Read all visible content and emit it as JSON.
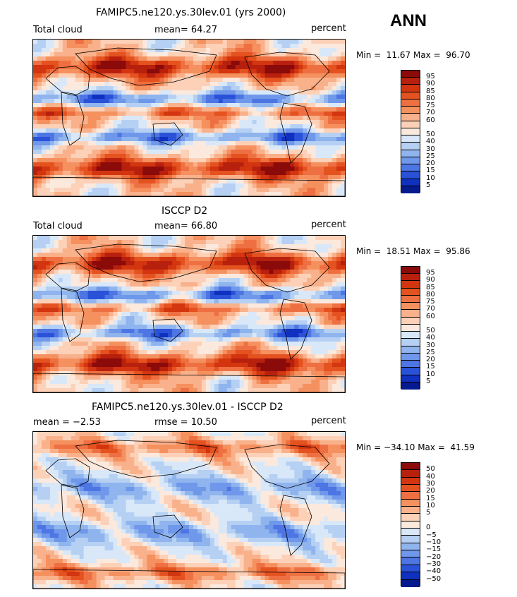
{
  "season": "ANN",
  "palette": {
    "levels_abs": [
      "#8b0a0a",
      "#b8200e",
      "#d2350f",
      "#e4521f",
      "#ee7042",
      "#f5905f",
      "#f9b18b",
      "#fcd1b8",
      "#fbe9dd",
      "#d9e8f8",
      "#b5d0f3",
      "#8fb4ee",
      "#6f97ea",
      "#4d75e3",
      "#2a52d9",
      "#1030c0",
      "#041a8e"
    ],
    "levels_diff": [
      "#8b0a0a",
      "#b8200e",
      "#d2350f",
      "#e4521f",
      "#ee7042",
      "#f5905f",
      "#f9b18b",
      "#fcd1b8",
      "#fbe9dd",
      "#d9e8f8",
      "#b5d0f3",
      "#8fb4ee",
      "#6f97ea",
      "#4d75e3",
      "#2a52d9",
      "#1030c0",
      "#041a8e"
    ]
  },
  "chart_data": [
    {
      "type": "heatmap",
      "title": "FAMIPC5.ne120.ys.30lev.01 (yrs 2000)",
      "left_label": "Total cloud",
      "mean_label": "mean=  64.27",
      "units": "percent",
      "min_max": "Min =  11.67 Max =  96.70",
      "min": 11.67,
      "max": 96.7,
      "mean": 64.27,
      "colorbar_labels": [
        "95",
        "90",
        "85",
        "80",
        "75",
        "70",
        "60",
        "50",
        "40",
        "30",
        "25",
        "20",
        "15",
        "10",
        "5"
      ]
    },
    {
      "type": "heatmap",
      "title": "ISCCP D2",
      "left_label": "Total cloud",
      "mean_label": "mean=  66.80",
      "units": "percent",
      "min_max": "Min =  18.51 Max =  95.86",
      "min": 18.51,
      "max": 95.86,
      "mean": 66.8,
      "colorbar_labels": [
        "95",
        "90",
        "85",
        "80",
        "75",
        "70",
        "60",
        "50",
        "40",
        "30",
        "25",
        "20",
        "15",
        "10",
        "5"
      ]
    },
    {
      "type": "heatmap",
      "title": "FAMIPC5.ne120.ys.30lev.01 - ISCCP D2",
      "left_label": "mean =  −2.53",
      "mean_label": "rmse =  10.50",
      "units": "percent",
      "min_max": "Min = −34.10 Max =  41.59",
      "min": -34.1,
      "max": 41.59,
      "mean": -2.53,
      "rmse": 10.5,
      "colorbar_labels": [
        "50",
        "40",
        "30",
        "20",
        "15",
        "10",
        "5",
        "0",
        "−5",
        "−10",
        "−15",
        "−20",
        "−30",
        "−40",
        "−50"
      ]
    }
  ]
}
